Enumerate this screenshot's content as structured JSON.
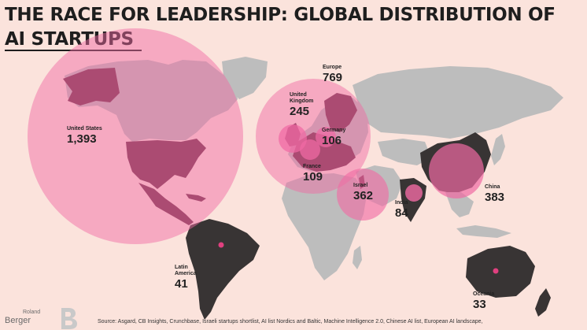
{
  "title": {
    "line1": "THE RACE FOR LEADERSHIP: GLOBAL DISTRIBUTION OF",
    "line2": "AI STARTUPS"
  },
  "regions": [
    {
      "id": "united-states",
      "name": "United States",
      "value": "1,393"
    },
    {
      "id": "europe",
      "name": "Europe",
      "value": "769"
    },
    {
      "id": "united-kingdom",
      "name_line1": "United",
      "name_line2": "Kingdom",
      "value": "245"
    },
    {
      "id": "germany",
      "name": "Germany",
      "value": "106"
    },
    {
      "id": "france",
      "name": "France",
      "value": "109"
    },
    {
      "id": "israel",
      "name": "Israel",
      "value": "362"
    },
    {
      "id": "india",
      "name": "India",
      "value": "84"
    },
    {
      "id": "china",
      "name": "China",
      "value": "383"
    },
    {
      "id": "latin-america",
      "name_line1": "Latin",
      "name_line2": "America",
      "value": "41"
    },
    {
      "id": "oceania",
      "name": "Oceania",
      "value": "33"
    }
  ],
  "colors": {
    "background": "#fbe3dc",
    "highlight_land": "#6b2f45",
    "dark_land": "#383434",
    "grey_land": "#bdbdbd",
    "bubble": "#f06aa3",
    "dot": "#e0407f"
  },
  "brand": {
    "line1": "Roland",
    "line2": "Berger"
  },
  "source": "Source: Asgard, CB Insights, Crunchbase, Israeli startups shortlist, AI list Nordics and Baltic, Machine Intelligence 2.0, Chinese AI list, European AI landscape,"
}
